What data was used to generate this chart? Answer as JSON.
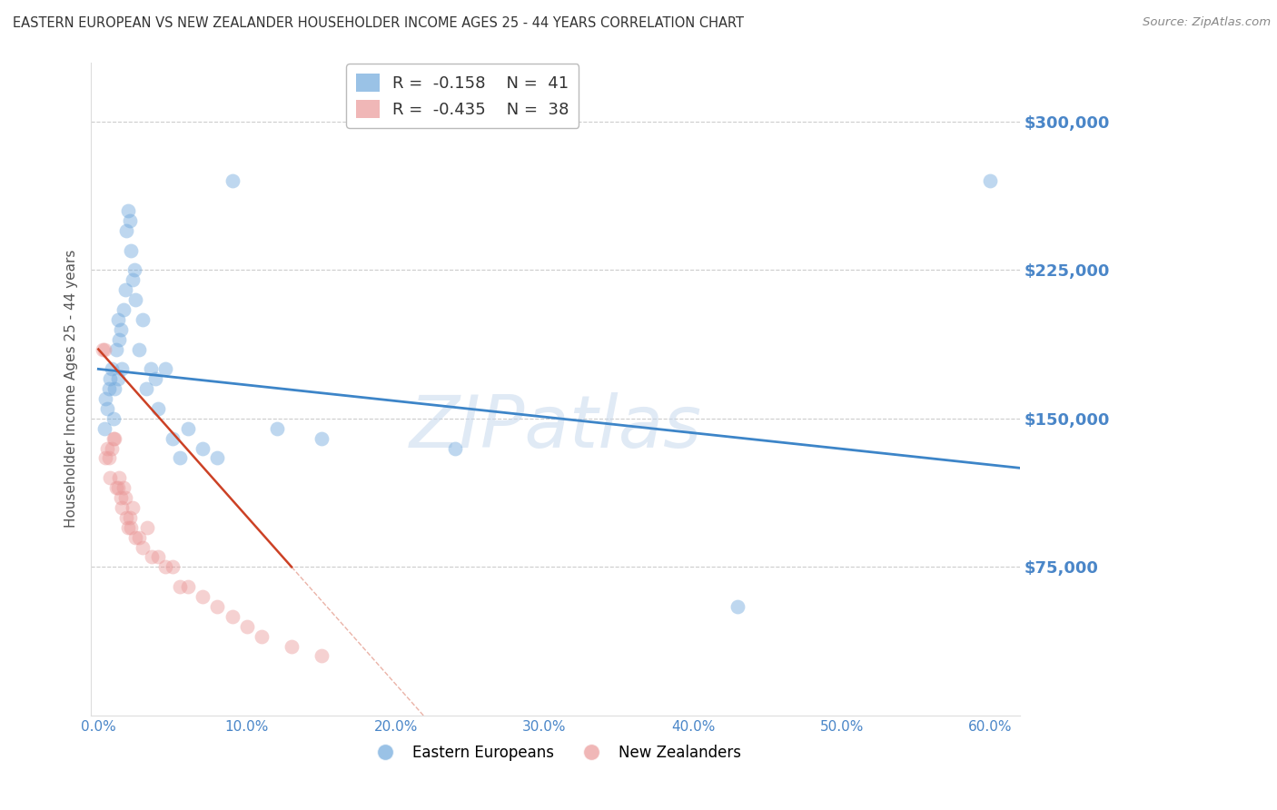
{
  "title": "EASTERN EUROPEAN VS NEW ZEALANDER HOUSEHOLDER INCOME AGES 25 - 44 YEARS CORRELATION CHART",
  "source": "Source: ZipAtlas.com",
  "xlabel_ticks": [
    "0.0%",
    "10.0%",
    "20.0%",
    "30.0%",
    "40.0%",
    "50.0%",
    "60.0%"
  ],
  "xlabel_tick_vals": [
    0.0,
    0.1,
    0.2,
    0.3,
    0.4,
    0.5,
    0.6
  ],
  "ylabel": "Householder Income Ages 25 - 44 years",
  "ylabel_ticks": [
    "$75,000",
    "$150,000",
    "$225,000",
    "$300,000"
  ],
  "ylabel_tick_vals": [
    75000,
    150000,
    225000,
    300000
  ],
  "xlim": [
    -0.005,
    0.62
  ],
  "ylim": [
    0,
    330000
  ],
  "watermark": "ZIPatlas",
  "legend_eu_r": "-0.158",
  "legend_eu_n": "41",
  "legend_nz_r": "-0.435",
  "legend_nz_n": "38",
  "eu_color": "#6fa8dc",
  "nz_color": "#ea9999",
  "trendline_eu_color": "#3d85c8",
  "trendline_nz_color": "#cc4125",
  "eu_scatter_x": [
    0.004,
    0.005,
    0.006,
    0.007,
    0.008,
    0.009,
    0.01,
    0.011,
    0.012,
    0.013,
    0.013,
    0.014,
    0.015,
    0.016,
    0.017,
    0.018,
    0.019,
    0.02,
    0.021,
    0.022,
    0.023,
    0.024,
    0.025,
    0.027,
    0.03,
    0.032,
    0.035,
    0.038,
    0.04,
    0.045,
    0.05,
    0.055,
    0.06,
    0.07,
    0.08,
    0.09,
    0.12,
    0.15,
    0.24,
    0.43,
    0.6
  ],
  "eu_scatter_y": [
    145000,
    160000,
    155000,
    165000,
    170000,
    175000,
    150000,
    165000,
    185000,
    170000,
    200000,
    190000,
    195000,
    175000,
    205000,
    215000,
    245000,
    255000,
    250000,
    235000,
    220000,
    225000,
    210000,
    185000,
    200000,
    165000,
    175000,
    170000,
    155000,
    175000,
    140000,
    130000,
    145000,
    135000,
    130000,
    270000,
    145000,
    140000,
    135000,
    55000,
    270000
  ],
  "nz_scatter_x": [
    0.003,
    0.004,
    0.005,
    0.006,
    0.007,
    0.008,
    0.009,
    0.01,
    0.011,
    0.012,
    0.013,
    0.014,
    0.015,
    0.016,
    0.017,
    0.018,
    0.019,
    0.02,
    0.021,
    0.022,
    0.023,
    0.025,
    0.027,
    0.03,
    0.033,
    0.036,
    0.04,
    0.045,
    0.05,
    0.055,
    0.06,
    0.07,
    0.08,
    0.09,
    0.1,
    0.11,
    0.13,
    0.15
  ],
  "nz_scatter_y": [
    185000,
    185000,
    130000,
    135000,
    130000,
    120000,
    135000,
    140000,
    140000,
    115000,
    115000,
    120000,
    110000,
    105000,
    115000,
    110000,
    100000,
    95000,
    100000,
    95000,
    105000,
    90000,
    90000,
    85000,
    95000,
    80000,
    80000,
    75000,
    75000,
    65000,
    65000,
    60000,
    55000,
    50000,
    45000,
    40000,
    35000,
    30000
  ],
  "background_color": "#ffffff",
  "grid_color": "#cccccc",
  "title_color": "#333333",
  "axis_label_color": "#4a86c8",
  "tick_label_color": "#4a86c8",
  "marker_size": 130,
  "marker_alpha": 0.45
}
